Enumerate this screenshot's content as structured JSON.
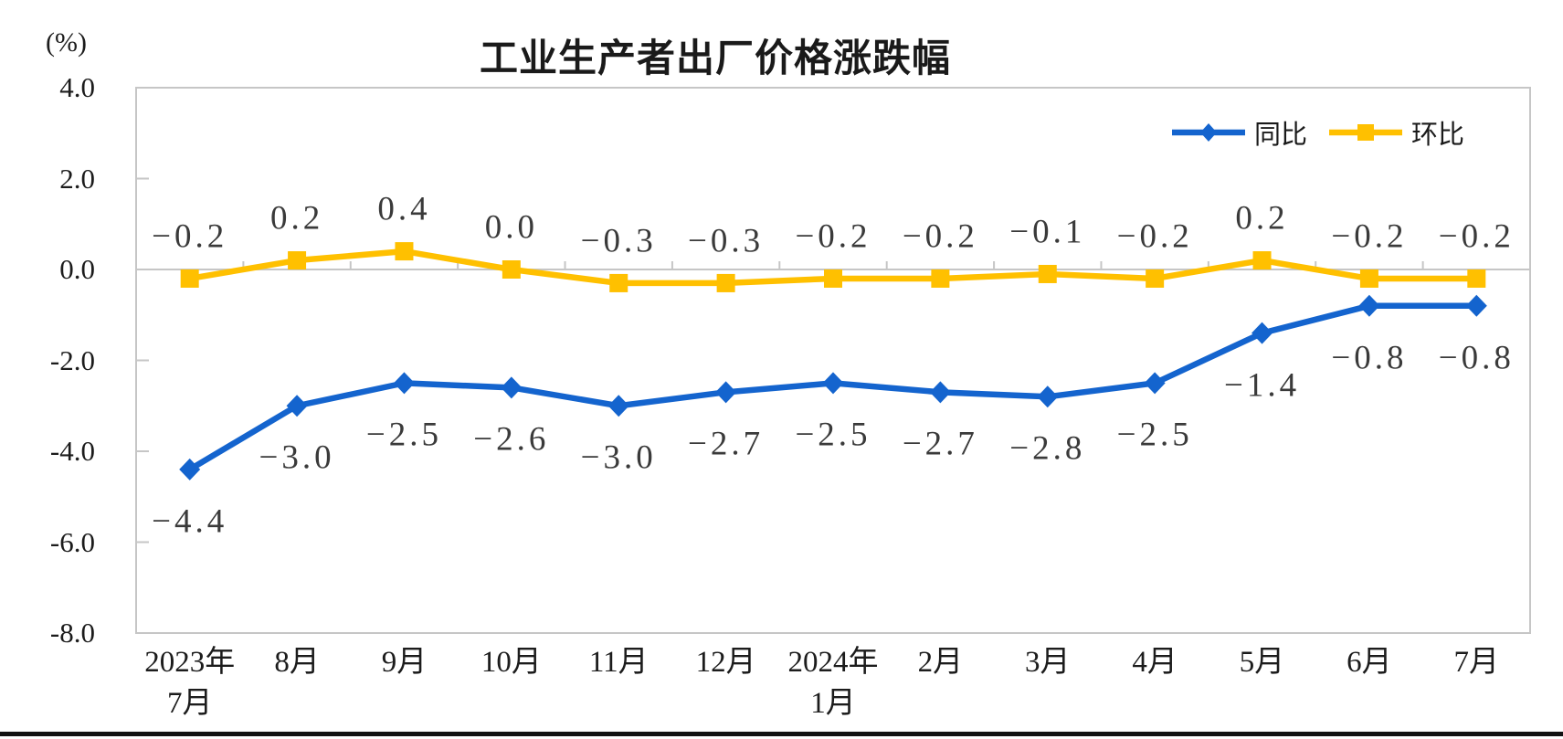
{
  "chart_data": {
    "type": "line",
    "title": "工业生产者出厂价格涨跌幅",
    "categories": [
      [
        "2023年",
        "7月"
      ],
      [
        "8月"
      ],
      [
        "9月"
      ],
      [
        "10月"
      ],
      [
        "11月"
      ],
      [
        "12月"
      ],
      [
        "2024年",
        "1月"
      ],
      [
        "2月"
      ],
      [
        "3月"
      ],
      [
        "4月"
      ],
      [
        "5月"
      ],
      [
        "6月"
      ],
      [
        "7月"
      ]
    ],
    "series": [
      {
        "name": "同比",
        "marker": "diamond",
        "color": "#1464CE",
        "values": [
          -4.4,
          -3.0,
          -2.5,
          -2.6,
          -3.0,
          -2.7,
          -2.5,
          -2.7,
          -2.8,
          -2.5,
          -1.4,
          -0.8,
          -0.8
        ],
        "labels": [
          "−4.4",
          "−3.0",
          "−2.5",
          "−2.6",
          "−3.0",
          "−2.7",
          "−2.5",
          "−2.7",
          "−2.8",
          "−2.5",
          "−1.4",
          "−0.8",
          "−0.8"
        ],
        "label_position": "below"
      },
      {
        "name": "环比",
        "marker": "square",
        "color": "#FFC000",
        "values": [
          -0.2,
          0.2,
          0.4,
          0.0,
          -0.3,
          -0.3,
          -0.2,
          -0.2,
          -0.1,
          -0.2,
          0.2,
          -0.2,
          -0.2
        ],
        "labels": [
          "−0.2",
          "0.2",
          "0.4",
          "0.0",
          "−0.3",
          "−0.3",
          "−0.2",
          "−0.2",
          "−0.1",
          "−0.2",
          "0.2",
          "−0.2",
          "−0.2"
        ],
        "label_position": "above"
      }
    ],
    "y_axis": {
      "unit": "(%)",
      "min": -8.0,
      "max": 4.0,
      "step": 2.0,
      "tick_labels": [
        "4.0",
        "2.0",
        "0.0",
        "-2.0",
        "-4.0",
        "-6.0",
        "-8.0"
      ]
    },
    "grid": "zero-line-only",
    "legend_position": "top-right-inside",
    "axis_color": "#C6C6C6",
    "background_color": "#FFFFFF"
  }
}
